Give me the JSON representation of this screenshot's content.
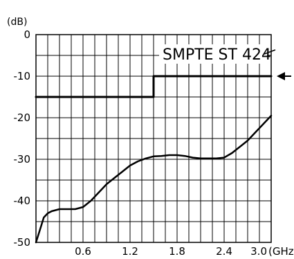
{
  "chart_data": {
    "type": "line",
    "y_unit": "(dB)",
    "x_unit": "(GHz)",
    "xlim": [
      0,
      3.0
    ],
    "ylim": [
      -50,
      0
    ],
    "grid": true,
    "x_ticks": [
      0.6,
      1.2,
      1.8,
      2.4,
      3.0
    ],
    "x_tick_labels": [
      "0.6",
      "1.2",
      "1.8",
      "2.4",
      "3.0"
    ],
    "y_ticks": [
      0,
      -10,
      -20,
      -30,
      -40,
      -50
    ],
    "y_tick_labels": [
      "0",
      "-10",
      "-20",
      "-30",
      "-40",
      "-50"
    ],
    "series": [
      {
        "name": "SMPTE ST 424",
        "style": "step",
        "x": [
          0,
          1.5,
          1.5,
          3.0
        ],
        "y": [
          -15,
          -15,
          -10,
          -10
        ]
      },
      {
        "style": "line",
        "x": [
          0,
          0.05,
          0.1,
          0.15,
          0.2,
          0.3,
          0.4,
          0.5,
          0.6,
          0.7,
          0.8,
          0.9,
          1.0,
          1.1,
          1.2,
          1.3,
          1.4,
          1.5,
          1.6,
          1.7,
          1.8,
          1.9,
          2.0,
          2.1,
          2.2,
          2.3,
          2.4,
          2.5,
          2.6,
          2.7,
          2.8,
          2.9,
          3.0
        ],
        "y": [
          -50,
          -47,
          -44,
          -43,
          -42.5,
          -42,
          -42,
          -42,
          -41.5,
          -40,
          -38,
          -36,
          -34.5,
          -33,
          -31.5,
          -30.5,
          -29.8,
          -29.3,
          -29.2,
          -29.0,
          -29.0,
          -29.2,
          -29.6,
          -29.8,
          -29.8,
          -29.8,
          -29.6,
          -28.5,
          -27.0,
          -25.5,
          -23.5,
          -21.5,
          -19.5
        ]
      }
    ],
    "annotation": {
      "text": "SMPTE ST 424",
      "arrow": "pointing-left-at-limit-line"
    }
  }
}
